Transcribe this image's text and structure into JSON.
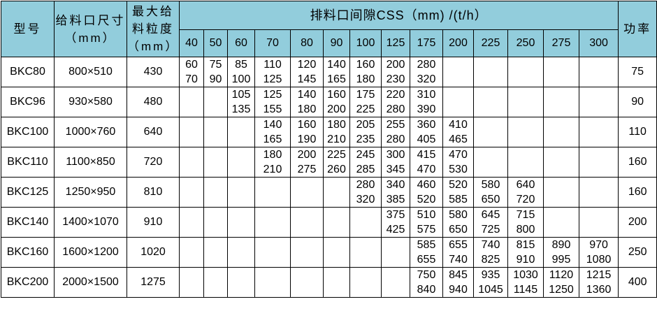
{
  "header": {
    "model": "型号",
    "feed_opening": "给料口尺寸\n（mm）",
    "max_feed": "最大给\n料粒度\n（mm）",
    "css_title": "排料口间隙CSS（mm) /(t/h）",
    "power": "功率",
    "css_values": [
      "40",
      "50",
      "60",
      "70",
      "80",
      "90",
      "100",
      "125",
      "175",
      "200",
      "225",
      "250",
      "275",
      "300"
    ]
  },
  "rows": [
    {
      "model": "BKC80",
      "opening": "800×510",
      "feed": "430",
      "cells": [
        "60\n70",
        "75\n90",
        "85\n100",
        "110\n125",
        "120\n145",
        "140\n165",
        "160\n180",
        "200\n230",
        "280\n320",
        "",
        "",
        "",
        "",
        ""
      ],
      "power": "75"
    },
    {
      "model": "BKC96",
      "opening": "930×580",
      "feed": "480",
      "cells": [
        "",
        "",
        "105\n135",
        "125\n155",
        "140\n180",
        "160\n200",
        "175\n225",
        "220\n280",
        "310\n390",
        "",
        "",
        "",
        "",
        ""
      ],
      "power": "90"
    },
    {
      "model": "BKC100",
      "opening": "1000×760",
      "feed": "640",
      "cells": [
        "",
        "",
        "",
        "140\n165",
        "160\n190",
        "180\n210",
        "205\n235",
        "255\n280",
        "360\n405",
        "410\n465",
        "",
        "",
        "",
        ""
      ],
      "power": "110"
    },
    {
      "model": "BKC110",
      "opening": "1100×850",
      "feed": "720",
      "cells": [
        "",
        "",
        "",
        "180\n210",
        "200\n275",
        "225\n260",
        "245\n285",
        "300\n345",
        "415\n470",
        "470\n530",
        "",
        "",
        "",
        ""
      ],
      "power": "160"
    },
    {
      "model": "BKC125",
      "opening": "1250×950",
      "feed": "810",
      "cells": [
        "",
        "",
        "",
        "",
        "",
        "",
        "280\n320",
        "340\n385",
        "460\n520",
        "520\n585",
        "580\n650",
        "640\n720",
        "",
        ""
      ],
      "power": "160"
    },
    {
      "model": "BKC140",
      "opening": "1400×1070",
      "feed": "910",
      "cells": [
        "",
        "",
        "",
        "",
        "",
        "",
        "",
        "375\n425",
        "510\n575",
        "580\n650",
        "645\n725",
        "715\n800",
        "",
        ""
      ],
      "power": "200"
    },
    {
      "model": "BKC160",
      "opening": "1600×1200",
      "feed": "1020",
      "cells": [
        "",
        "",
        "",
        "",
        "",
        "",
        "",
        "",
        "585\n655",
        "655\n740",
        "740\n825",
        "815\n910",
        "890\n995",
        "970\n1080"
      ],
      "power": "250"
    },
    {
      "model": "BKC200",
      "opening": "2000×1500",
      "feed": "1275",
      "cells": [
        "",
        "",
        "",
        "",
        "",
        "",
        "",
        "",
        "750\n840",
        "845\n940",
        "935\n1045",
        "1030\n1145",
        "1120\n1250",
        "1215\n1360"
      ],
      "power": "400"
    }
  ],
  "colors": {
    "header_bg": "#92cddc",
    "border": "#000000"
  }
}
